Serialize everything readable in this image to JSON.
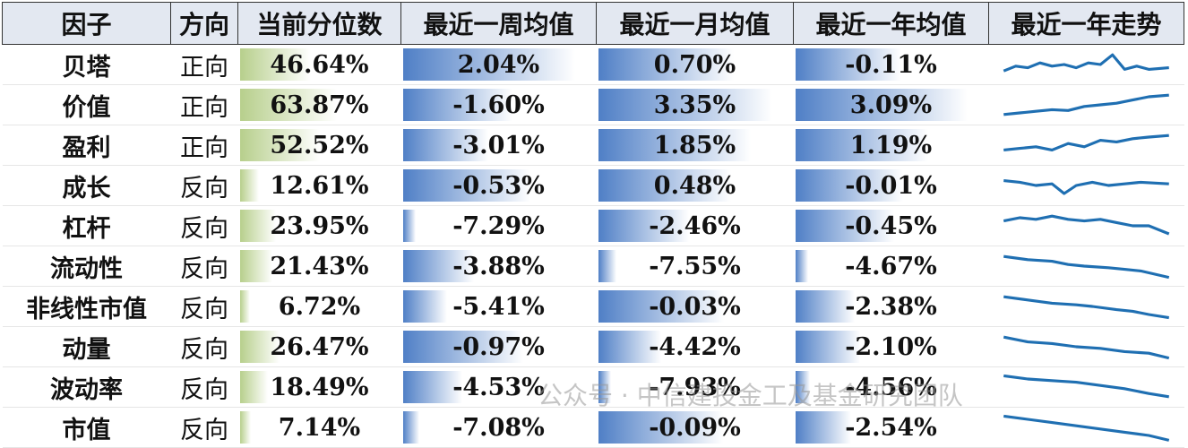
{
  "table": {
    "header": [
      "因子",
      "方向",
      "当前分位数",
      "最近一周均值",
      "最近一月均值",
      "最近一年均值",
      "最近一年走势"
    ],
    "rows": [
      [
        "贝塔",
        "正向",
        "46.64%",
        "2.04%",
        "0.70%",
        "-0.11%"
      ],
      [
        "价值",
        "正向",
        "63.87%",
        "-1.60%",
        "3.35%",
        "3.09%"
      ],
      [
        "盈利",
        "正向",
        "52.52%",
        "-3.01%",
        "1.85%",
        "1.19%"
      ],
      [
        "成长",
        "反向",
        "12.61%",
        "-0.53%",
        "0.48%",
        "-0.01%"
      ],
      [
        "杠杆",
        "反向",
        "23.95%",
        "-7.29%",
        "-2.46%",
        "-0.45%"
      ],
      [
        "流动性",
        "反向",
        "21.43%",
        "-3.88%",
        "-7.55%",
        "-4.67%"
      ],
      [
        "非线性市值",
        "反向",
        "6.72%",
        "-5.41%",
        "-0.03%",
        "-2.38%"
      ],
      [
        "动量",
        "反向",
        "26.47%",
        "-0.97%",
        "-4.42%",
        "-2.10%"
      ],
      [
        "波动率",
        "反向",
        "18.49%",
        "-4.53%",
        "-7.93%",
        "-4.56%"
      ],
      [
        "市值",
        "反向",
        "7.14%",
        "-7.08%",
        "-0.09%",
        "-2.54%"
      ]
    ]
  },
  "watermark": "公众号 · 中信建投金工及基金研究团队"
}
